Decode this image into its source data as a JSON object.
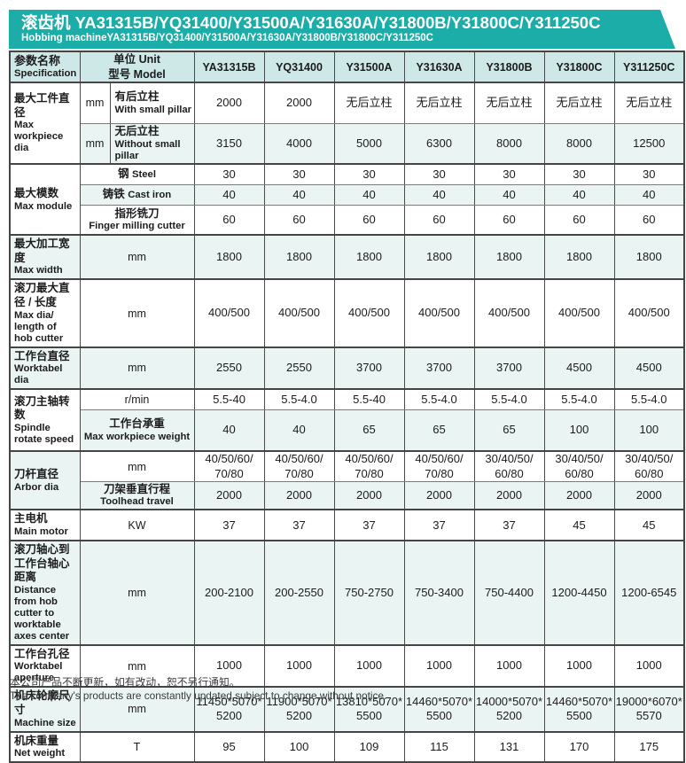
{
  "banner": {
    "title_zh": "滚齿机 YA31315B/YQ31400/Y31500A/Y31630A/Y31800B/Y31800C/Y311250C",
    "title_en": "Hobbing machineYA31315B/YQ31400/Y31500A/Y31630A/Y31800B/Y31800C/Y311250C"
  },
  "colors": {
    "banner_teal": "#1cada8",
    "header_bg": "#cde8e6",
    "stripe_bg": "#e9f4f3",
    "border_dark": "#454545",
    "text": "#1c1c1c"
  },
  "header": {
    "spec_zh": "参数名称",
    "spec_en": "Specification",
    "unit_line1": "单位 Unit",
    "unit_line2": "型号 Model",
    "models": [
      "YA31315B",
      "YQ31400",
      "Y31500A",
      "Y31630A",
      "Y31800B",
      "Y31800C",
      "Y311250C"
    ]
  },
  "rows": {
    "workpiece": {
      "label_zh": "最大工件直径",
      "label_en": "Max workpiece dia",
      "with_pillar": {
        "unit": "mm",
        "sub_zh": "有后立柱",
        "sub_en": "With small pillar",
        "values": [
          "2000",
          "2000",
          "无后立柱",
          "无后立柱",
          "无后立柱",
          "无后立柱",
          "无后立柱"
        ]
      },
      "without_pillar": {
        "unit": "mm",
        "sub_zh": "无后立柱",
        "sub_en": "Without small pillar",
        "values": [
          "3150",
          "4000",
          "5000",
          "6300",
          "8000",
          "8000",
          "12500"
        ]
      }
    },
    "module": {
      "label_zh": "最大模数",
      "label_en": "Max module",
      "steel": {
        "sub_zh": "钢",
        "sub_en": "Steel",
        "values": [
          "30",
          "30",
          "30",
          "30",
          "30",
          "30",
          "30"
        ]
      },
      "cast_iron": {
        "sub_zh": "铸铁",
        "sub_en": "Cast iron",
        "values": [
          "40",
          "40",
          "40",
          "40",
          "40",
          "40",
          "40"
        ]
      },
      "finger": {
        "sub_zh": "指形铣刀",
        "sub_en": "Finger milling cutter",
        "values": [
          "60",
          "60",
          "60",
          "60",
          "60",
          "60",
          "60"
        ]
      }
    },
    "max_width": {
      "label_zh": "最大加工宽度",
      "label_en": "Max width",
      "unit": "mm",
      "values": [
        "1800",
        "1800",
        "1800",
        "1800",
        "1800",
        "1800",
        "1800"
      ]
    },
    "hob_cutter": {
      "label_zh": "滚刀最大直径 / 长度",
      "label_en": "Max dia/ length of hob cutter",
      "unit": "mm",
      "values": [
        "400/500",
        "400/500",
        "400/500",
        "400/500",
        "400/500",
        "400/500",
        "400/500"
      ]
    },
    "worktable_dia": {
      "label_zh": "工作台直径",
      "label_en": "Worktabel dia",
      "unit": "mm",
      "values": [
        "2550",
        "2550",
        "3700",
        "3700",
        "3700",
        "4500",
        "4500"
      ]
    },
    "spindle": {
      "label_zh": "滚刀主轴转数",
      "label_en": "Spindle rotate speed",
      "rpm": {
        "unit": "r/min",
        "values": [
          "5.5-40",
          "5.5-4.0",
          "5.5-40",
          "5.5-4.0",
          "5.5-4.0",
          "5.5-4.0",
          "5.5-4.0"
        ]
      },
      "table_weight": {
        "sub_zh": "工作台承重",
        "sub_en": "Max workpiece weight",
        "values": [
          "40",
          "40",
          "65",
          "65",
          "65",
          "100",
          "100"
        ]
      }
    },
    "arbor": {
      "label_zh": "刀杆直径",
      "label_en": "Arbor dia",
      "dia": {
        "unit": "mm",
        "values": [
          "40/50/60/\n70/80",
          "40/50/60/\n70/80",
          "40/50/60/\n70/80",
          "40/50/60/\n70/80",
          "30/40/50/\n60/80",
          "30/40/50/\n60/80",
          "30/40/50/\n60/80"
        ]
      },
      "travel": {
        "sub_zh": "刀架垂直行程",
        "sub_en": "Toolhead travel",
        "values": [
          "2000",
          "2000",
          "2000",
          "2000",
          "2000",
          "2000",
          "2000"
        ]
      }
    },
    "main_motor": {
      "label_zh": "主电机",
      "label_en": "Main motor",
      "unit": "KW",
      "values": [
        "37",
        "37",
        "37",
        "37",
        "37",
        "45",
        "45"
      ]
    },
    "distance": {
      "label_zh": "滚刀轴心到工作台轴心距离",
      "label_en": "Distance from hob cutter to worktable axes center",
      "unit": "mm",
      "values": [
        "200-2100",
        "200-2550",
        "750-2750",
        "750-3400",
        "750-4400",
        "1200-4450",
        "1200-6545"
      ]
    },
    "aperture": {
      "label_zh": "工作台孔径",
      "label_en": "Worktabel aperture",
      "unit": "mm",
      "values": [
        "1000",
        "1000",
        "1000",
        "1000",
        "1000",
        "1000",
        "1000"
      ]
    },
    "machine_size": {
      "label_zh": "机床轮廓尺寸",
      "label_en": "Machine size",
      "unit": "mm",
      "values": [
        "11450*5070*\n5200",
        "11900*5070*\n5200",
        "13810*5070*\n5500",
        "14460*5070*\n5500",
        "14000*5070*\n5200",
        "14460*5070*\n5500",
        "19000*6070*\n5570"
      ]
    },
    "net_weight": {
      "label_zh": "机床重量",
      "label_en": "Net weight",
      "unit": "T",
      "values": [
        "95",
        "100",
        "109",
        "115",
        "131",
        "170",
        "175"
      ]
    }
  },
  "footer": {
    "line_zh": "本公司产品不断更新，如有改动，恕不另行通知。",
    "line_en": "The company's products are constantly updated,subject to change,without notice."
  }
}
